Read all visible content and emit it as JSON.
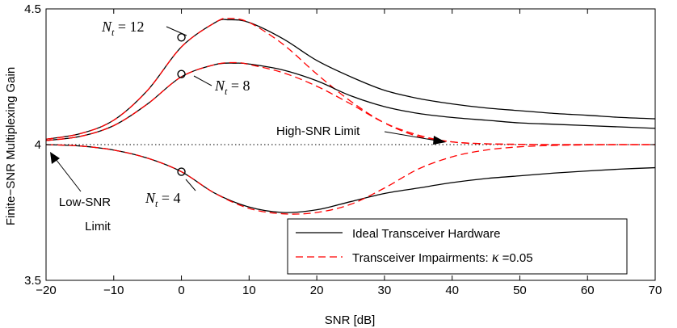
{
  "chart_data": {
    "type": "line",
    "title": "",
    "xlabel": "SNR [dB]",
    "ylabel": "Finite−SNR Multiplexing Gain",
    "xlim": [
      -20,
      70
    ],
    "ylim": [
      3.5,
      4.5
    ],
    "xticks": [
      -20,
      -10,
      0,
      10,
      20,
      30,
      40,
      50,
      60,
      70
    ],
    "xtick_labels": [
      "−20",
      "−10",
      "0",
      "10",
      "20",
      "30",
      "40",
      "50",
      "60",
      "70"
    ],
    "yticks": [
      3.5,
      4,
      4.5
    ],
    "ytick_labels": [
      "3.5",
      "4",
      "4.5"
    ],
    "legend": {
      "position": "bottom-right",
      "entries": [
        {
          "label": "Ideal Transceiver Hardware",
          "style": "solid",
          "color": "#000000"
        },
        {
          "label_prefix": "Transceiver Impairments: ",
          "label_symbol": "κ",
          "label_suffix": " =0.05",
          "style": "dashed",
          "color": "#ff0000"
        }
      ]
    },
    "reference_line": {
      "name": "High-SNR Limit",
      "y": 4,
      "style": "dotted"
    },
    "series": [
      {
        "name": "Nt=12 ideal",
        "style": "solid",
        "color": "#000000",
        "x": [
          -20,
          -15,
          -10,
          -5,
          0,
          5,
          7,
          10,
          15,
          20,
          25,
          30,
          35,
          40,
          45,
          50,
          55,
          60,
          65,
          70
        ],
        "y": [
          4.02,
          4.04,
          4.09,
          4.2,
          4.36,
          4.45,
          4.46,
          4.45,
          4.39,
          4.31,
          4.25,
          4.2,
          4.17,
          4.15,
          4.135,
          4.125,
          4.115,
          4.108,
          4.1,
          4.095
        ]
      },
      {
        "name": "Nt=12 impairments",
        "style": "dashed",
        "color": "#ff0000",
        "x": [
          -20,
          -15,
          -10,
          -5,
          0,
          5,
          7,
          10,
          15,
          20,
          25,
          30,
          35,
          40,
          45,
          50,
          55,
          60,
          65,
          70
        ],
        "y": [
          4.02,
          4.04,
          4.09,
          4.2,
          4.36,
          4.45,
          4.465,
          4.45,
          4.37,
          4.26,
          4.16,
          4.08,
          4.03,
          4.01,
          4.003,
          4.001,
          4.0,
          4.0,
          4.0,
          4.0
        ]
      },
      {
        "name": "Nt=8 ideal",
        "style": "solid",
        "color": "#000000",
        "x": [
          -20,
          -15,
          -10,
          -5,
          0,
          5,
          8,
          10,
          15,
          20,
          25,
          30,
          35,
          40,
          45,
          50,
          55,
          60,
          65,
          70
        ],
        "y": [
          4.015,
          4.03,
          4.07,
          4.15,
          4.25,
          4.295,
          4.3,
          4.297,
          4.275,
          4.235,
          4.18,
          4.14,
          4.115,
          4.1,
          4.09,
          4.08,
          4.075,
          4.07,
          4.065,
          4.06
        ]
      },
      {
        "name": "Nt=8 impairments",
        "style": "dashed",
        "color": "#ff0000",
        "x": [
          -20,
          -15,
          -10,
          -5,
          0,
          5,
          8,
          10,
          15,
          20,
          25,
          30,
          35,
          40,
          45,
          50,
          55,
          60,
          65,
          70
        ],
        "y": [
          4.015,
          4.03,
          4.07,
          4.15,
          4.25,
          4.295,
          4.302,
          4.295,
          4.265,
          4.215,
          4.15,
          4.08,
          4.035,
          4.01,
          4.003,
          4.001,
          4.0,
          4.0,
          4.0,
          4.0
        ]
      },
      {
        "name": "Nt=4 ideal",
        "style": "solid",
        "color": "#000000",
        "x": [
          -20,
          -15,
          -10,
          -5,
          0,
          5,
          10,
          15,
          20,
          25,
          30,
          35,
          40,
          45,
          50,
          55,
          60,
          65,
          70
        ],
        "y": [
          4.0,
          3.995,
          3.98,
          3.95,
          3.9,
          3.82,
          3.77,
          3.75,
          3.76,
          3.79,
          3.82,
          3.84,
          3.86,
          3.875,
          3.885,
          3.895,
          3.903,
          3.91,
          3.915
        ]
      },
      {
        "name": "Nt=4 impairments",
        "style": "dashed",
        "color": "#ff0000",
        "x": [
          -20,
          -15,
          -10,
          -5,
          0,
          5,
          10,
          15,
          20,
          25,
          30,
          35,
          40,
          45,
          50,
          55,
          60,
          65,
          70
        ],
        "y": [
          4.0,
          3.995,
          3.98,
          3.95,
          3.9,
          3.82,
          3.765,
          3.745,
          3.75,
          3.78,
          3.84,
          3.91,
          3.955,
          3.98,
          3.992,
          3.997,
          3.999,
          4.0,
          4.0
        ]
      }
    ],
    "markers": [
      {
        "label": "Nt=12",
        "x": 0,
        "y": 4.395
      },
      {
        "label": "Nt=8",
        "x": 0,
        "y": 4.26
      },
      {
        "label": "Nt=4",
        "x": 0,
        "y": 3.9
      }
    ],
    "annotations": [
      {
        "id": "nt12",
        "var": "N",
        "sub": "t",
        "rest": " = 12"
      },
      {
        "id": "nt8",
        "var": "N",
        "sub": "t",
        "rest": " = 8"
      },
      {
        "id": "nt4",
        "var": "N",
        "sub": "t",
        "rest": " = 4"
      },
      {
        "id": "high_snr",
        "text": "High-SNR Limit"
      },
      {
        "id": "low_snr",
        "lines": [
          "Low-SNR",
          "Limit"
        ]
      }
    ]
  }
}
